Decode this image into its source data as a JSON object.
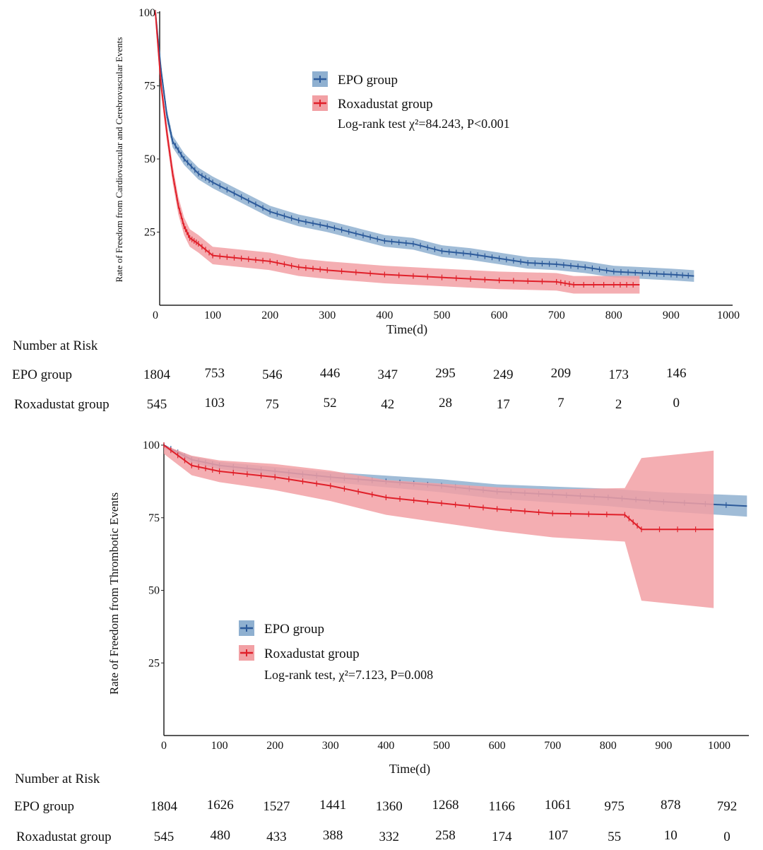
{
  "colors": {
    "epo": "#2c5a9a",
    "epo_band": "#8fb0d0",
    "roxa": "#e0202a",
    "roxa_band": "#f2a0a4"
  },
  "chart_data": [
    {
      "type": "line",
      "subtype": "kaplan-meier",
      "ylabel": "Rate of Freedom from Cardiovascular and Cerebrovascular Events",
      "xlabel": "Time(d)",
      "xlim": [
        0,
        1000
      ],
      "ylim": [
        0,
        100
      ],
      "xticks": [
        0,
        100,
        200,
        300,
        400,
        500,
        600,
        700,
        800,
        900,
        1000
      ],
      "yticks": [
        100,
        75,
        50,
        25
      ],
      "legend": {
        "position": "top-center",
        "entries": [
          "EPO group",
          "Roxadustat  group"
        ],
        "annotation": "Log-rank test  χ²=84.243, P<0.001"
      },
      "series": [
        {
          "name": "EPO group",
          "x": [
            0,
            10,
            20,
            30,
            50,
            75,
            100,
            150,
            200,
            250,
            300,
            350,
            400,
            450,
            500,
            550,
            600,
            650,
            700,
            750,
            800,
            850,
            900,
            940
          ],
          "y": [
            100,
            80,
            65,
            56,
            50,
            45,
            42,
            37,
            32,
            29,
            27,
            24.5,
            22,
            21,
            18.5,
            17.5,
            16,
            14.5,
            14,
            13,
            11.5,
            11,
            10.5,
            10
          ],
          "ci": 2
        },
        {
          "name": "Roxadustat  group",
          "x": [
            0,
            10,
            20,
            30,
            40,
            50,
            60,
            75,
            100,
            150,
            200,
            250,
            300,
            400,
            500,
            600,
            700,
            730,
            800,
            845
          ],
          "y": [
            100,
            75,
            59,
            45,
            34,
            27,
            23,
            21,
            17,
            16,
            15,
            13,
            12,
            10.5,
            9.5,
            8.5,
            8,
            7,
            7,
            7
          ],
          "ci": 3
        }
      ],
      "risk_table": {
        "title": "Number at Risk",
        "times": [
          0,
          100,
          200,
          300,
          400,
          500,
          600,
          700,
          800,
          900
        ],
        "rows": [
          {
            "label": "EPO group",
            "values": [
              1804,
              753,
              546,
              446,
              347,
              295,
              249,
              209,
              173,
              146
            ]
          },
          {
            "label": "Roxadustat  group",
            "values": [
              545,
              103,
              75,
              52,
              42,
              28,
              17,
              7,
              2,
              0
            ]
          }
        ]
      }
    },
    {
      "type": "line",
      "subtype": "kaplan-meier",
      "ylabel": "Rate of Freedom from Thrombotic Events",
      "xlabel": "Time(d)",
      "xlim": [
        0,
        1050
      ],
      "ylim": [
        0,
        100
      ],
      "xticks": [
        0,
        100,
        200,
        300,
        400,
        500,
        600,
        700,
        800,
        900,
        1000
      ],
      "yticks": [
        100,
        75,
        50,
        25
      ],
      "legend": {
        "position": "bottom-left",
        "entries": [
          "EPO group",
          "Roxadustat  group"
        ],
        "annotation": "Log-rank test, χ²=7.123, P=0.008"
      },
      "series": [
        {
          "name": "EPO group",
          "x": [
            0,
            50,
            100,
            200,
            300,
            400,
            500,
            600,
            700,
            800,
            900,
            1050
          ],
          "y": [
            100,
            95,
            93,
            91,
            89,
            87.5,
            86,
            84,
            83,
            82,
            80.5,
            79
          ],
          "ci": 1
        },
        {
          "name": "Roxadustat  group",
          "x": [
            0,
            50,
            100,
            200,
            300,
            400,
            500,
            600,
            700,
            830,
            860,
            990
          ],
          "y": [
            100,
            93,
            91,
            89,
            86,
            82,
            80,
            78,
            76.5,
            76,
            71,
            71
          ],
          "ci": 3
        }
      ],
      "risk_table": {
        "title": "Number at Risk",
        "times": [
          0,
          100,
          200,
          300,
          400,
          500,
          600,
          700,
          800,
          900,
          1000
        ],
        "rows": [
          {
            "label": "EPO group",
            "values": [
              1804,
              1626,
              1527,
              1441,
              1360,
              1268,
              1166,
              1061,
              975,
              878,
              792
            ]
          },
          {
            "label": "Roxadustat  group",
            "values": [
              545,
              480,
              433,
              388,
              332,
              258,
              174,
              107,
              55,
              10,
              0
            ]
          }
        ]
      }
    }
  ]
}
